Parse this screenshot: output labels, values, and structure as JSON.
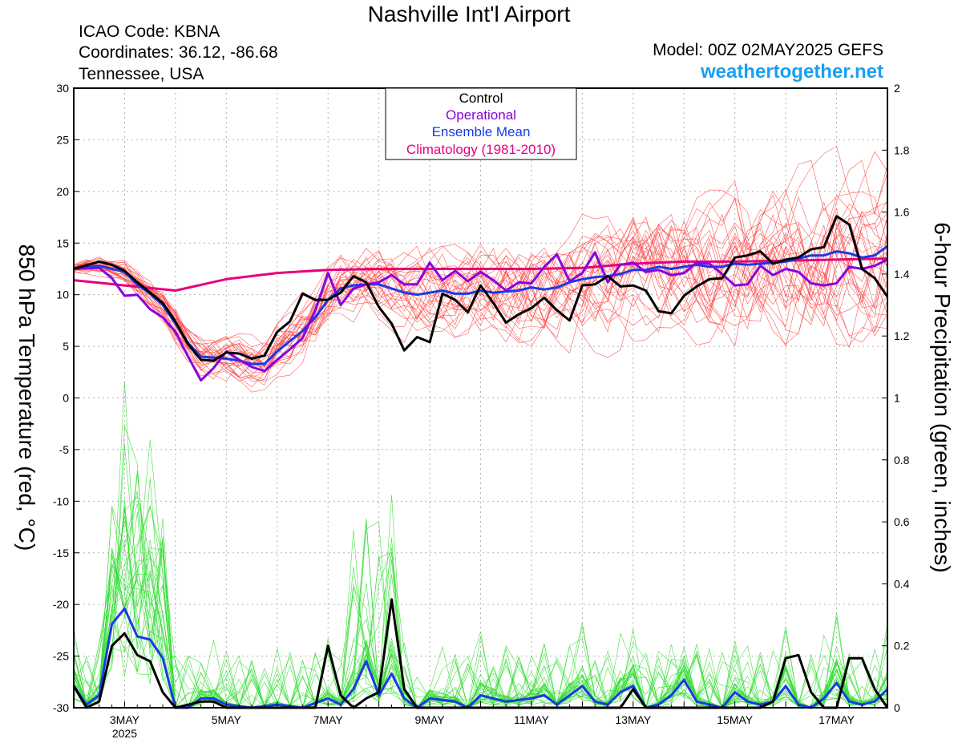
{
  "header": {
    "title": "Nashville Int'l Airport",
    "icao": "ICAO Code: KBNA",
    "coords": "Coordinates: 36.12, -86.68",
    "region": "Tennessee, USA",
    "model": "Model: 00Z 02MAY2025 GEFS",
    "site": "weathertogether.net",
    "site_color": "#1a9ff0"
  },
  "legend": {
    "items": [
      {
        "label": "Control",
        "color": "#000000"
      },
      {
        "label": "Operational",
        "color": "#8a00e0"
      },
      {
        "label": "Ensemble Mean",
        "color": "#1a3ae6"
      },
      {
        "label": "Climatology (1981-2010)",
        "color": "#e6007e"
      }
    ]
  },
  "chart_data": {
    "type": "line",
    "ylabel_left": "850 hPa Temperature (red, °C)",
    "ylabel_right": "6-hour Precipitation (green, inches)",
    "ylim_left": [
      -30,
      30
    ],
    "ylim_right": [
      0,
      2
    ],
    "yticks_left": [
      "30",
      "25",
      "20",
      "15",
      "10",
      "5",
      "0",
      "-5",
      "-10",
      "-15",
      "-20",
      "-25",
      "-30"
    ],
    "yticks_right": [
      "2",
      "1.8",
      "1.6",
      "1.4",
      "1.2",
      "1",
      "0.8",
      "0.6",
      "0.4",
      "0.2",
      "0"
    ],
    "xlim": [
      0,
      16
    ],
    "x_unit": "days since 00Z 2 May 2025",
    "xticks": [
      {
        "x": 1,
        "label": "3MAY",
        "sub": "2025"
      },
      {
        "x": 3,
        "label": "5MAY"
      },
      {
        "x": 5,
        "label": "7MAY"
      },
      {
        "x": 7,
        "label": "9MAY"
      },
      {
        "x": 9,
        "label": "11MAY"
      },
      {
        "x": 11,
        "label": "13MAY"
      },
      {
        "x": 13,
        "label": "15MAY"
      },
      {
        "x": 15,
        "label": "17MAY"
      }
    ],
    "colors": {
      "members_temp": "#ff4040",
      "members_precip": "#33dd33",
      "control": "#000000",
      "operational": "#8a00e0",
      "mean": "#1a3ae6",
      "climatology": "#e6007e",
      "grid": "#b0b0b0"
    },
    "temperature": {
      "control": [
        [
          0,
          12.5
        ],
        [
          0.5,
          13.2
        ],
        [
          0.75,
          12.9
        ],
        [
          1,
          12.3
        ],
        [
          1.25,
          11.2
        ],
        [
          1.5,
          10.2
        ],
        [
          1.75,
          9.2
        ],
        [
          2,
          7.4
        ],
        [
          2.25,
          5.2
        ],
        [
          2.5,
          3.7
        ],
        [
          2.75,
          3.6
        ],
        [
          3,
          4.4
        ],
        [
          3.25,
          4.3
        ],
        [
          3.5,
          3.8
        ],
        [
          3.75,
          4.1
        ],
        [
          4,
          6.4
        ],
        [
          4.25,
          7.4
        ],
        [
          4.5,
          10.1
        ],
        [
          4.75,
          9.5
        ],
        [
          5,
          9.5
        ],
        [
          5.25,
          10.2
        ],
        [
          5.5,
          11.8
        ],
        [
          5.75,
          11.2
        ],
        [
          6,
          8.8
        ],
        [
          6.25,
          7.2
        ],
        [
          6.5,
          4.6
        ],
        [
          6.75,
          5.9
        ],
        [
          7,
          5.4
        ],
        [
          7.25,
          10.1
        ],
        [
          7.5,
          9.5
        ],
        [
          7.75,
          8.3
        ],
        [
          8,
          10.9
        ],
        [
          8.25,
          9.2
        ],
        [
          8.5,
          7.3
        ],
        [
          8.75,
          8.1
        ],
        [
          9,
          8.7
        ],
        [
          9.25,
          9.7
        ],
        [
          9.5,
          8.5
        ],
        [
          9.75,
          7.5
        ],
        [
          10,
          10.9
        ],
        [
          10.25,
          11.0
        ],
        [
          10.5,
          11.8
        ],
        [
          10.75,
          10.8
        ],
        [
          11,
          10.9
        ],
        [
          11.25,
          10.4
        ],
        [
          11.5,
          8.4
        ],
        [
          11.75,
          8.2
        ],
        [
          12,
          9.9
        ],
        [
          12.25,
          10.8
        ],
        [
          12.5,
          11.5
        ],
        [
          12.75,
          11.6
        ],
        [
          13,
          13.6
        ],
        [
          13.25,
          13.8
        ],
        [
          13.5,
          14.2
        ],
        [
          13.75,
          13.0
        ],
        [
          14,
          13.4
        ],
        [
          14.25,
          13.6
        ],
        [
          14.5,
          14.4
        ],
        [
          14.75,
          14.6
        ],
        [
          15,
          17.6
        ],
        [
          15.25,
          16.8
        ],
        [
          15.5,
          12.5
        ],
        [
          15.75,
          11.6
        ],
        [
          16,
          9.8
        ]
      ],
      "operational": [
        [
          0,
          12.5
        ],
        [
          0.5,
          12.6
        ],
        [
          0.75,
          11.6
        ],
        [
          1,
          9.9
        ],
        [
          1.25,
          10.0
        ],
        [
          1.5,
          8.6
        ],
        [
          1.75,
          7.8
        ],
        [
          2,
          6.4
        ],
        [
          2.25,
          4.0
        ],
        [
          2.5,
          1.7
        ],
        [
          2.75,
          2.9
        ],
        [
          3,
          4.5
        ],
        [
          3.25,
          3.7
        ],
        [
          3.5,
          3.0
        ],
        [
          3.75,
          2.6
        ],
        [
          4,
          3.7
        ],
        [
          4.25,
          4.7
        ],
        [
          4.5,
          5.8
        ],
        [
          4.75,
          8.5
        ],
        [
          5,
          12.1
        ],
        [
          5.25,
          9.0
        ],
        [
          5.5,
          10.6
        ],
        [
          5.75,
          11.0
        ],
        [
          6,
          11.2
        ],
        [
          6.25,
          11.9
        ],
        [
          6.5,
          11.0
        ],
        [
          6.75,
          11.0
        ],
        [
          7,
          13.1
        ],
        [
          7.25,
          11.4
        ],
        [
          7.5,
          12.3
        ],
        [
          7.75,
          11.3
        ],
        [
          8,
          12.2
        ],
        [
          8.25,
          11.4
        ],
        [
          8.5,
          10.4
        ],
        [
          8.75,
          11.2
        ],
        [
          9,
          11.1
        ],
        [
          9.25,
          12.7
        ],
        [
          9.5,
          13.9
        ],
        [
          9.75,
          11.3
        ],
        [
          10,
          12.1
        ],
        [
          10.25,
          14.1
        ],
        [
          10.5,
          11.2
        ],
        [
          10.75,
          12.9
        ],
        [
          11,
          13.1
        ],
        [
          11.25,
          12.2
        ],
        [
          11.5,
          12.4
        ],
        [
          11.75,
          11.9
        ],
        [
          12,
          12.1
        ],
        [
          12.25,
          13.1
        ],
        [
          12.5,
          13.0
        ],
        [
          12.75,
          12.0
        ],
        [
          13,
          10.9
        ],
        [
          13.25,
          11.0
        ],
        [
          13.5,
          12.8
        ],
        [
          13.75,
          11.9
        ],
        [
          14,
          12.5
        ],
        [
          14.25,
          12.2
        ],
        [
          14.5,
          11.1
        ],
        [
          14.75,
          10.9
        ],
        [
          15,
          11.1
        ],
        [
          15.25,
          12.7
        ],
        [
          15.5,
          12.5
        ],
        [
          15.75,
          12.8
        ],
        [
          16,
          13.4
        ]
      ],
      "mean": [
        [
          0,
          12.5
        ],
        [
          0.5,
          12.8
        ],
        [
          0.75,
          12.5
        ],
        [
          1,
          12.2
        ],
        [
          1.25,
          11.0
        ],
        [
          1.5,
          10.1
        ],
        [
          1.75,
          9.0
        ],
        [
          2,
          7.2
        ],
        [
          2.25,
          5.3
        ],
        [
          2.5,
          4.0
        ],
        [
          2.75,
          3.9
        ],
        [
          3,
          3.8
        ],
        [
          3.25,
          3.6
        ],
        [
          3.5,
          3.3
        ],
        [
          3.75,
          3.3
        ],
        [
          4,
          4.5
        ],
        [
          4.25,
          5.5
        ],
        [
          4.5,
          6.5
        ],
        [
          4.75,
          7.8
        ],
        [
          5,
          9.5
        ],
        [
          5.25,
          10.6
        ],
        [
          5.5,
          10.9
        ],
        [
          5.75,
          11.0
        ],
        [
          6,
          11.0
        ],
        [
          6.25,
          10.6
        ],
        [
          6.5,
          10.2
        ],
        [
          6.75,
          10.0
        ],
        [
          7,
          10.2
        ],
        [
          7.25,
          10.4
        ],
        [
          7.5,
          10.1
        ],
        [
          7.75,
          10.1
        ],
        [
          8,
          10.4
        ],
        [
          8.25,
          10.2
        ],
        [
          8.5,
          10.3
        ],
        [
          8.75,
          10.4
        ],
        [
          9,
          10.7
        ],
        [
          9.25,
          10.5
        ],
        [
          9.5,
          10.7
        ],
        [
          9.75,
          11.2
        ],
        [
          10,
          11.5
        ],
        [
          10.25,
          11.7
        ],
        [
          10.5,
          11.8
        ],
        [
          10.75,
          12.0
        ],
        [
          11,
          12.4
        ],
        [
          11.25,
          12.4
        ],
        [
          11.5,
          12.7
        ],
        [
          11.75,
          12.5
        ],
        [
          12,
          12.7
        ],
        [
          12.25,
          12.9
        ],
        [
          12.5,
          12.7
        ],
        [
          12.75,
          12.7
        ],
        [
          13,
          13.0
        ],
        [
          13.25,
          12.9
        ],
        [
          13.5,
          13.0
        ],
        [
          13.75,
          13.1
        ],
        [
          14,
          13.2
        ],
        [
          14.25,
          13.5
        ],
        [
          14.5,
          13.8
        ],
        [
          14.75,
          13.8
        ],
        [
          15,
          14.2
        ],
        [
          15.25,
          14.0
        ],
        [
          15.5,
          13.6
        ],
        [
          15.75,
          13.8
        ],
        [
          16,
          14.7
        ]
      ],
      "climatology": [
        [
          0,
          11.4
        ],
        [
          1,
          10.9
        ],
        [
          2,
          10.4
        ],
        [
          3,
          11.5
        ],
        [
          4,
          12.1
        ],
        [
          5,
          12.4
        ],
        [
          6,
          12.5
        ],
        [
          7,
          12.5
        ],
        [
          8,
          12.5
        ],
        [
          9,
          12.5
        ],
        [
          10,
          12.6
        ],
        [
          11,
          13.0
        ],
        [
          12,
          13.2
        ],
        [
          13,
          13.2
        ],
        [
          14,
          13.3
        ],
        [
          15,
          13.4
        ],
        [
          16,
          13.5
        ]
      ]
    },
    "precipitation": {
      "control": [
        [
          0,
          0.07
        ],
        [
          0.25,
          0.0
        ],
        [
          0.5,
          0.02
        ],
        [
          0.75,
          0.2
        ],
        [
          1,
          0.24
        ],
        [
          1.25,
          0.17
        ],
        [
          1.5,
          0.15
        ],
        [
          1.75,
          0.05
        ],
        [
          2,
          0.0
        ],
        [
          2.5,
          0.02
        ],
        [
          2.75,
          0.02
        ],
        [
          3,
          0.0
        ],
        [
          4.75,
          0.0
        ],
        [
          5,
          0.2
        ],
        [
          5.25,
          0.04
        ],
        [
          5.5,
          0.0
        ],
        [
          5.75,
          0.03
        ],
        [
          6,
          0.05
        ],
        [
          6.25,
          0.35
        ],
        [
          6.5,
          0.06
        ],
        [
          6.75,
          0.0
        ],
        [
          10.75,
          0.0
        ],
        [
          11,
          0.06
        ],
        [
          11.25,
          0.0
        ],
        [
          13.5,
          0.0
        ],
        [
          13.75,
          0.02
        ],
        [
          14,
          0.16
        ],
        [
          14.25,
          0.17
        ],
        [
          14.5,
          0.05
        ],
        [
          14.75,
          0.0
        ],
        [
          15,
          0.0
        ],
        [
          15.25,
          0.16
        ],
        [
          15.5,
          0.16
        ],
        [
          15.75,
          0.06
        ],
        [
          16,
          0.0
        ]
      ],
      "mean": [
        [
          0,
          0.07
        ],
        [
          0.25,
          0.01
        ],
        [
          0.5,
          0.04
        ],
        [
          0.75,
          0.27
        ],
        [
          1,
          0.32
        ],
        [
          1.25,
          0.23
        ],
        [
          1.5,
          0.22
        ],
        [
          1.75,
          0.16
        ],
        [
          2,
          0.0
        ],
        [
          2.25,
          0.0
        ],
        [
          2.5,
          0.03
        ],
        [
          2.75,
          0.03
        ],
        [
          3,
          0.01
        ],
        [
          3.5,
          0.0
        ],
        [
          4,
          0.01
        ],
        [
          4.5,
          0.0
        ],
        [
          5,
          0.03
        ],
        [
          5.25,
          0.01
        ],
        [
          5.5,
          0.06
        ],
        [
          5.75,
          0.15
        ],
        [
          6,
          0.04
        ],
        [
          6.25,
          0.11
        ],
        [
          6.5,
          0.03
        ],
        [
          6.75,
          0.0
        ],
        [
          7,
          0.03
        ],
        [
          7.5,
          0.02
        ],
        [
          7.75,
          0.0
        ],
        [
          8,
          0.04
        ],
        [
          8.5,
          0.02
        ],
        [
          9,
          0.03
        ],
        [
          9.25,
          0.04
        ],
        [
          9.5,
          0.01
        ],
        [
          9.75,
          0.04
        ],
        [
          10,
          0.07
        ],
        [
          10.25,
          0.02
        ],
        [
          10.5,
          0.01
        ],
        [
          10.75,
          0.05
        ],
        [
          11,
          0.07
        ],
        [
          11.25,
          0.0
        ],
        [
          11.5,
          0.01
        ],
        [
          11.75,
          0.04
        ],
        [
          12,
          0.09
        ],
        [
          12.25,
          0.02
        ],
        [
          12.5,
          0.01
        ],
        [
          12.75,
          0.0
        ],
        [
          13,
          0.05
        ],
        [
          13.25,
          0.02
        ],
        [
          13.5,
          0.01
        ],
        [
          13.75,
          0.02
        ],
        [
          14,
          0.07
        ],
        [
          14.25,
          0.01
        ],
        [
          14.5,
          0.0
        ],
        [
          14.75,
          0.03
        ],
        [
          15,
          0.08
        ],
        [
          15.25,
          0.02
        ],
        [
          15.5,
          0.01
        ],
        [
          15.75,
          0.02
        ],
        [
          16,
          0.06
        ]
      ]
    }
  }
}
